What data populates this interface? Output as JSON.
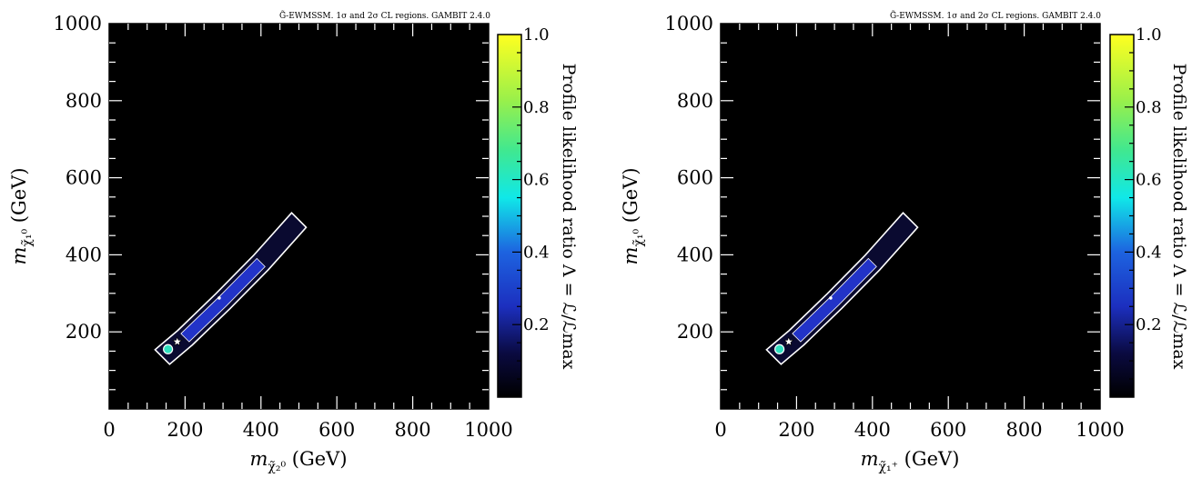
{
  "chart_data": [
    {
      "type": "heatmap",
      "title": "G̃-EWMSSM. 1σ and 2σ CL regions. GAMBIT 2.4.0",
      "xlabel": "m_χ̃₂⁰ (GeV)",
      "xlabel_main": "m",
      "xlabel_sub": "χ̃₂⁰",
      "xlabel_unit": " (GeV)",
      "ylabel": "m_χ̃₁⁰ (GeV)",
      "ylabel_main": "m",
      "ylabel_sub": "χ̃₁⁰",
      "ylabel_unit": " (GeV)",
      "xlim": [
        0,
        1000
      ],
      "ylim": [
        0,
        1000
      ],
      "xticks": [
        "0",
        "200",
        "400",
        "600",
        "800",
        "1000"
      ],
      "yticks": [
        "200",
        "400",
        "600",
        "800",
        "1000"
      ],
      "colorbar": {
        "label": "Profile likelihood ratio Λ = ℒ/ℒmax",
        "range": [
          0,
          1
        ],
        "ticks": [
          "0.2",
          "0.4",
          "0.6",
          "0.8",
          "1.0"
        ]
      },
      "region_band": [
        [
          140,
          135
        ],
        [
          200,
          185
        ],
        [
          300,
          280
        ],
        [
          400,
          380
        ],
        [
          500,
          490
        ]
      ],
      "best_fit_point": [
        165,
        165
      ],
      "max_likelihood_region": [
        155,
        155
      ]
    },
    {
      "type": "heatmap",
      "title": "G̃-EWMSSM. 1σ and 2σ CL regions. GAMBIT 2.4.0",
      "xlabel": "m_χ̃₁⁺ (GeV)",
      "xlabel_main": "m",
      "xlabel_sub": "χ̃₁⁺",
      "xlabel_unit": " (GeV)",
      "ylabel": "m_χ̃₁⁰ (GeV)",
      "ylabel_main": "m",
      "ylabel_sub": "χ̃₁⁰",
      "ylabel_unit": " (GeV)",
      "xlim": [
        0,
        1000
      ],
      "ylim": [
        0,
        1000
      ],
      "xticks": [
        "0",
        "200",
        "400",
        "600",
        "800",
        "1000"
      ],
      "yticks": [
        "200",
        "400",
        "600",
        "800",
        "1000"
      ],
      "colorbar": {
        "label": "Profile likelihood ratio Λ = ℒ/ℒmax",
        "range": [
          0,
          1
        ],
        "ticks": [
          "0.2",
          "0.4",
          "0.6",
          "0.8",
          "1.0"
        ]
      },
      "region_band": [
        [
          140,
          135
        ],
        [
          200,
          185
        ],
        [
          300,
          280
        ],
        [
          400,
          380
        ],
        [
          500,
          490
        ]
      ],
      "best_fit_point": [
        165,
        165
      ],
      "max_likelihood_region": [
        155,
        155
      ]
    }
  ]
}
